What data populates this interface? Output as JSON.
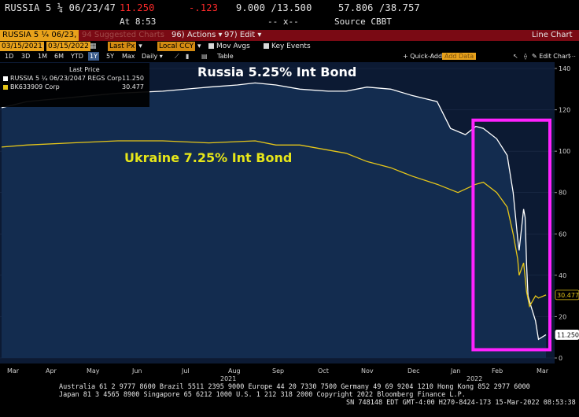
{
  "header": {
    "ticker": "RUSSIA 5 ¼ 06/23/47",
    "price": "11.250",
    "change": "-.123",
    "bid_ask": "9.000 /13.500",
    "hi_lo": "57.806 /38.757",
    "time": "At 8:53",
    "x_mark": "-- x--",
    "source": "Source CBBT"
  },
  "command_bar": {
    "security": "RUSSIA 5 ¼ 06/23,",
    "ghost_text": "94 Suggested Charts",
    "actions_num": "96)",
    "actions": "Actions",
    "edit_num": "97)",
    "edit": "Edit",
    "view_name": "Line Chart"
  },
  "controls": {
    "start_date": "03/15/2021",
    "end_date": "03/15/2022",
    "price_field": "Last Px",
    "currency": "Local CCY",
    "mov_avgs": "Mov Avgs",
    "key_events": "Key Events",
    "ranges": [
      "1D",
      "3D",
      "1M",
      "6M",
      "YTD",
      "1Y",
      "5Y",
      "Max"
    ],
    "selected_range": "1Y",
    "frequency": "Daily",
    "table": "Table",
    "quick_add": "+ Quick-Add",
    "add_data": "Add Data",
    "edit_chart": "Edit Chart"
  },
  "legend": {
    "header": "Last Price",
    "series1_label": "RUSSIA 5 ¼ 06/23/2047 REGS Corp",
    "series1_value": "11.250",
    "series2_label": "BK633909 Corp",
    "series2_value": "30.477"
  },
  "annotations": {
    "russia": "Russia 5.25% Int Bond",
    "ukraine": "Ukraine 7.25% Int Bond"
  },
  "chart_data": {
    "type": "line",
    "x_labels": [
      "Mar",
      "Apr",
      "May",
      "Jun",
      "Jul",
      "Aug",
      "Sep",
      "Oct",
      "Nov",
      "Dec",
      "Jan",
      "Feb",
      "Mar"
    ],
    "year_labels": [
      "2021",
      "2022"
    ],
    "ylim": [
      0,
      140
    ],
    "yticks": [
      0,
      20,
      40,
      60,
      80,
      100,
      120,
      140
    ],
    "series": [
      {
        "name": "RUSSIA 5 ¼ 06/23/2047 REGS Corp",
        "color": "#ffffff",
        "fill": true,
        "x": [
          "2021-03-15",
          "2021-04-01",
          "2021-05-01",
          "2021-06-01",
          "2021-07-01",
          "2021-08-01",
          "2021-08-20",
          "2021-09-01",
          "2021-09-15",
          "2021-10-01",
          "2021-10-20",
          "2021-11-01",
          "2021-11-15",
          "2021-12-01",
          "2021-12-15",
          "2022-01-01",
          "2022-01-10",
          "2022-01-20",
          "2022-01-27",
          "2022-02-01",
          "2022-02-10",
          "2022-02-17",
          "2022-02-21",
          "2022-02-24",
          "2022-02-25",
          "2022-02-28",
          "2022-03-01",
          "2022-03-02",
          "2022-03-03",
          "2022-03-05",
          "2022-03-08",
          "2022-03-10",
          "2022-03-15"
        ],
        "values": [
          121,
          124,
          126,
          128,
          129,
          131,
          132,
          133,
          132,
          130,
          129,
          129,
          131,
          130,
          127,
          124,
          111,
          108,
          112,
          111,
          106,
          98,
          80,
          58,
          52,
          72,
          68,
          45,
          30,
          25,
          18,
          9,
          11.25
        ]
      },
      {
        "name": "BK633909 Corp",
        "color": "#e6c619",
        "fill": false,
        "x": [
          "2021-03-15",
          "2021-04-01",
          "2021-05-01",
          "2021-06-01",
          "2021-07-01",
          "2021-08-01",
          "2021-09-01",
          "2021-09-15",
          "2021-10-01",
          "2021-11-01",
          "2021-11-15",
          "2021-12-01",
          "2021-12-15",
          "2022-01-01",
          "2022-01-15",
          "2022-01-27",
          "2022-02-01",
          "2022-02-10",
          "2022-02-17",
          "2022-02-21",
          "2022-02-24",
          "2022-02-25",
          "2022-02-28",
          "2022-03-02",
          "2022-03-04",
          "2022-03-08",
          "2022-03-10",
          "2022-03-15"
        ],
        "values": [
          102,
          103,
          104,
          105,
          105,
          104,
          105,
          103,
          103,
          99,
          95,
          92,
          88,
          84,
          80,
          84,
          85,
          80,
          73,
          60,
          48,
          40,
          46,
          32,
          25,
          30,
          29,
          30.477
        ]
      }
    ],
    "grid": true,
    "highlight_box": {
      "from": "2022-02-01",
      "to": "2022-03-15",
      "color": "#ff22ff"
    }
  },
  "footer": {
    "line1": "Australia 61 2 9777 8600 Brazil 5511 2395 9000 Europe 44 20 7330 7500 Germany 49 69 9204 1210 Hong Kong 852 2977 6000",
    "line2": "Japan 81 3 4565 8900       Singapore 65 6212 1000       U.S. 1 212 318 2000         Copyright 2022 Bloomberg Finance L.P.",
    "line3": "SN 748148 EDT  GMT-4:00 H270-8424-173 15-Mar-2022 08:53:38"
  }
}
